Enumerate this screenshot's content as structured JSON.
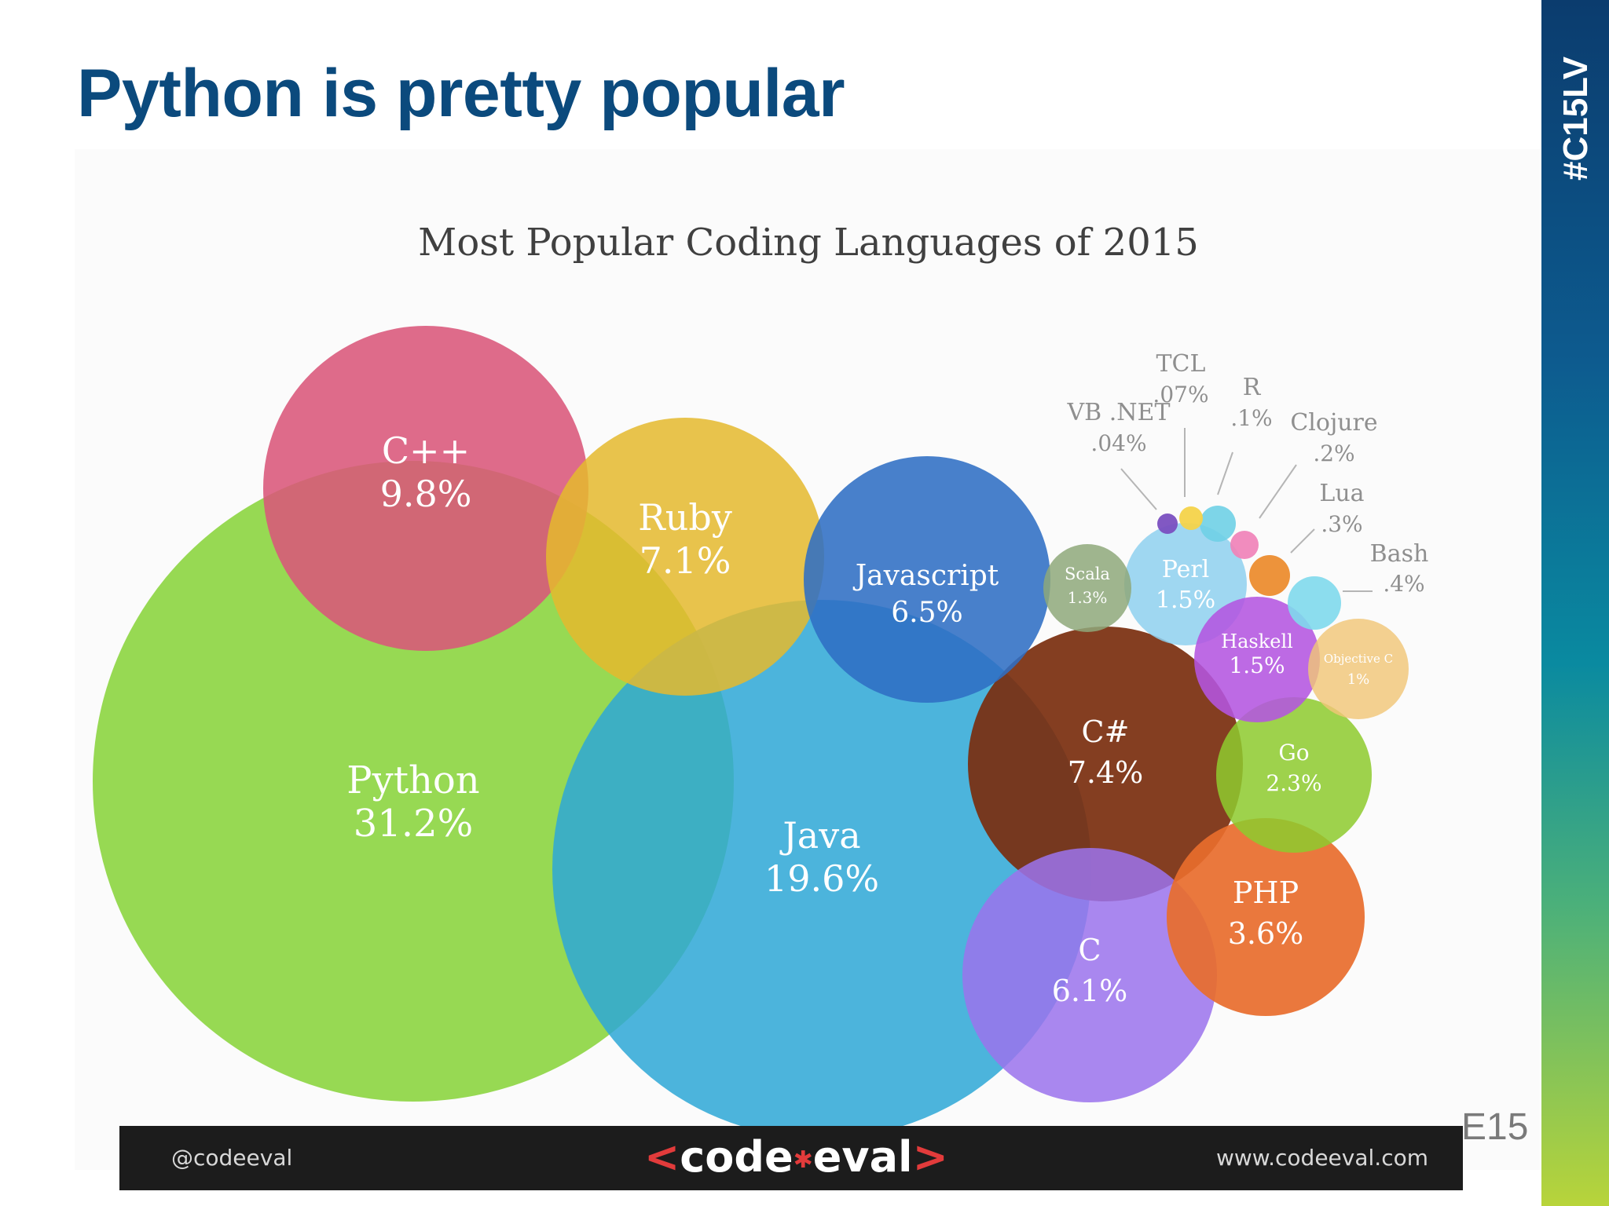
{
  "slide": {
    "title": "Python is pretty popular",
    "side_tag": "#C15LV",
    "page_number": "E15"
  },
  "footer": {
    "handle": "@codeeval",
    "logo_left": "<",
    "logo_code": "code",
    "logo_eval": "eval",
    "logo_right": ">",
    "url": "www.codeeval.com"
  },
  "chart_data": {
    "type": "bubble",
    "title": "Most Popular Coding Languages of 2015",
    "series": [
      {
        "name": "Python",
        "value": "31.2%",
        "color": "#8ed644"
      },
      {
        "name": "Java",
        "value": "19.6%",
        "color": "#2fa8d6"
      },
      {
        "name": "C++",
        "value": "9.8%",
        "color": "#d9577a"
      },
      {
        "name": "C#",
        "value": "7.4%",
        "color": "#7a2e0e"
      },
      {
        "name": "Ruby",
        "value": "7.1%",
        "color": "#e4b92e"
      },
      {
        "name": "Javascript",
        "value": "6.5%",
        "color": "#2f6ec4"
      },
      {
        "name": "C",
        "value": "6.1%",
        "color": "#9b73ec"
      },
      {
        "name": "PHP",
        "value": "3.6%",
        "color": "#e86d2c"
      },
      {
        "name": "Go",
        "value": "2.3%",
        "color": "#8ecb2e"
      },
      {
        "name": "Perl",
        "value": "1.5%",
        "color": "#8ed0ee"
      },
      {
        "name": "Haskell",
        "value": "1.5%",
        "color": "#b455e0"
      },
      {
        "name": "Scala",
        "value": "1.3%",
        "color": "#8ea87a"
      },
      {
        "name": "Objective C",
        "value": "1%",
        "color": "#f0c678"
      },
      {
        "name": "Bash",
        "value": ".4%",
        "color": "#7fd9ec"
      },
      {
        "name": "Lua",
        "value": ".3%",
        "color": "#ec8a2a"
      },
      {
        "name": "Clojure",
        "value": ".2%",
        "color": "#f082b8"
      },
      {
        "name": "R",
        "value": ".1%",
        "color": "#6fd0e6"
      },
      {
        "name": "TCL",
        "value": ".07%",
        "color": "#f4d34a"
      },
      {
        "name": "VB .NET",
        "value": ".04%",
        "color": "#7a4fc0"
      }
    ]
  }
}
